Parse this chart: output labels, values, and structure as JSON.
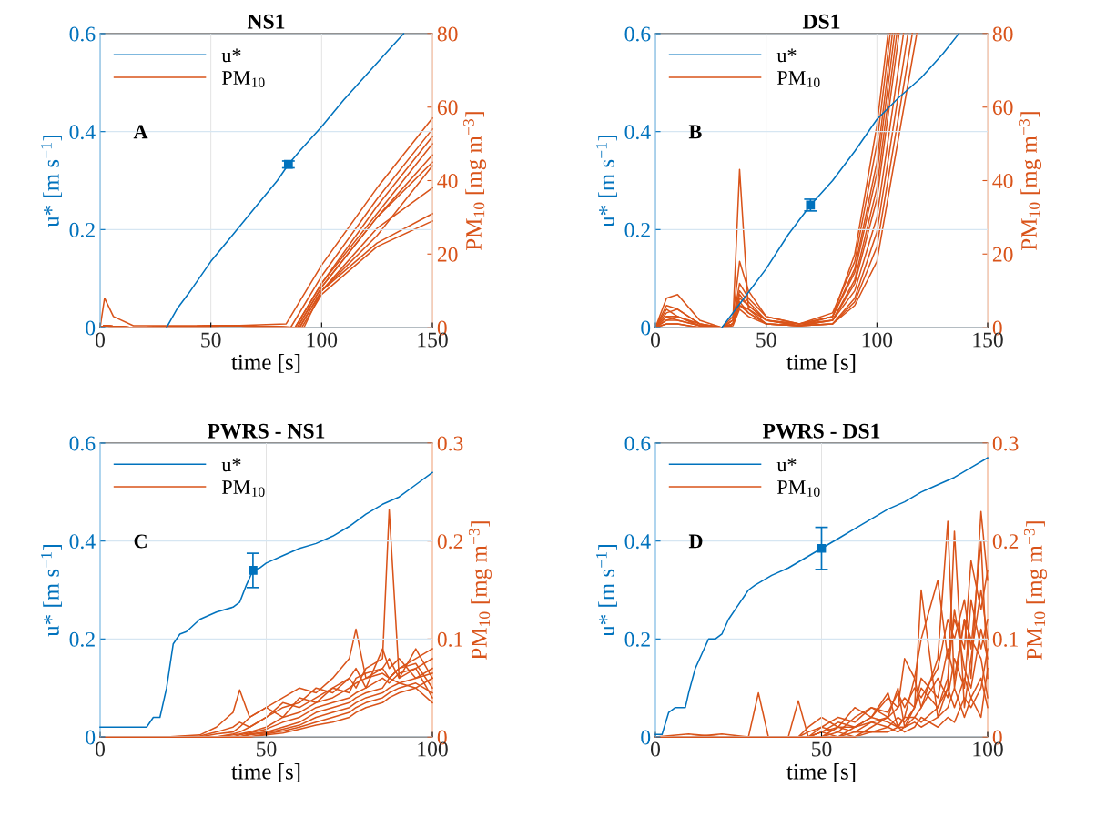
{
  "chart_data": [
    {
      "type": "line",
      "title": "NS1",
      "xlabel": "time [s]",
      "ylabel": "u* [m s$^{−1}$]",
      "y2label": "PM$_{10}$ [mg m$^{−3}$]",
      "annotations": [
        "A"
      ],
      "grid": true,
      "legend": "top left",
      "xlim": [
        0,
        150
      ],
      "xticks": [
        0,
        50,
        100,
        150
      ],
      "ylim": [
        0,
        0.6
      ],
      "yticks": [
        0,
        0.2,
        0.4,
        0.6
      ],
      "y2lim": [
        0,
        80
      ],
      "y2ticks": [
        0,
        20,
        40,
        60,
        80
      ],
      "series": [
        {
          "name": "u*",
          "color": "#0072bd",
          "x": [
            30,
            35,
            40,
            50,
            60,
            70,
            80,
            85,
            90,
            100,
            110,
            120,
            130,
            137
          ],
          "values": [
            0,
            0.04,
            0.07,
            0.135,
            0.19,
            0.245,
            0.3,
            0.333,
            0.36,
            0.41,
            0.465,
            0.515,
            0.565,
            0.6
          ]
        },
        {
          "type": "scatter",
          "marker": "square",
          "color": "#0072bd",
          "x": [
            85
          ],
          "values": [
            0.333
          ],
          "errors": [
            0.007
          ]
        },
        {
          "name": "PM$_{10}$",
          "axis": "y2",
          "color": "#d95319",
          "x": [
            0,
            2,
            6,
            15,
            60,
            84,
            100,
            125,
            150
          ],
          "values": [
            0,
            8,
            3,
            0.5,
            0.5,
            1,
            17,
            38,
            57
          ]
        },
        {
          "axis": "y2",
          "color": "#d95319",
          "x": [
            0,
            2,
            6,
            15,
            60,
            86,
            100,
            125,
            150
          ],
          "values": [
            0,
            0.5,
            0.3,
            0,
            0.5,
            0,
            14,
            35,
            54
          ]
        },
        {
          "axis": "y2",
          "color": "#d95319",
          "x": [
            0,
            2,
            6,
            15,
            60,
            88,
            100,
            125,
            150
          ],
          "values": [
            0,
            0.5,
            0.3,
            0,
            0.5,
            0,
            12,
            33,
            52
          ]
        },
        {
          "axis": "y2",
          "color": "#d95319",
          "x": [
            0,
            2,
            6,
            15,
            60,
            88,
            100,
            125,
            150
          ],
          "values": [
            0,
            0.5,
            0.3,
            0,
            0.5,
            0,
            12,
            31,
            50
          ]
        },
        {
          "axis": "y2",
          "color": "#d95319",
          "x": [
            0,
            2,
            6,
            15,
            60,
            89,
            100,
            125,
            150
          ],
          "values": [
            0,
            0.5,
            0.3,
            0,
            0.5,
            0,
            11,
            30,
            47
          ]
        },
        {
          "axis": "y2",
          "color": "#d95319",
          "x": [
            0,
            2,
            6,
            15,
            60,
            89,
            100,
            125,
            150
          ],
          "values": [
            0,
            0.5,
            0.3,
            0,
            0.5,
            0,
            11,
            30,
            45
          ]
        },
        {
          "axis": "y2",
          "color": "#d95319",
          "x": [
            0,
            2,
            6,
            15,
            60,
            90,
            100,
            125,
            150
          ],
          "values": [
            0,
            0.5,
            0.3,
            0,
            0.5,
            0,
            10,
            27,
            38
          ]
        },
        {
          "axis": "y2",
          "color": "#d95319",
          "x": [
            0,
            2,
            6,
            15,
            60,
            90,
            100,
            125,
            150
          ],
          "values": [
            0,
            0.5,
            0.3,
            0,
            0.5,
            0,
            10,
            23,
            31
          ]
        },
        {
          "axis": "y2",
          "color": "#d95319",
          "x": [
            0,
            2,
            6,
            15,
            60,
            91,
            100,
            125,
            150
          ],
          "values": [
            0,
            0.5,
            0.3,
            0,
            0.5,
            0,
            9,
            22,
            29
          ]
        },
        {
          "axis": "y2",
          "color": "#d95319",
          "x": [
            0,
            2,
            6,
            15,
            60,
            92,
            100,
            125,
            150
          ],
          "values": [
            0,
            0.5,
            0.3,
            0,
            0.5,
            0,
            10,
            25,
            44
          ]
        }
      ]
    },
    {
      "type": "line",
      "title": "DS1",
      "xlabel": "time [s]",
      "ylabel": "u* [m s$^{−1}$]",
      "y2label": "PM$_{10}$ [mg m$^{−3}$]",
      "annotations": [
        "B"
      ],
      "grid": true,
      "legend": "top left",
      "xlim": [
        0,
        150
      ],
      "xticks": [
        0,
        50,
        100,
        150
      ],
      "ylim": [
        0,
        0.6
      ],
      "yticks": [
        0,
        0.2,
        0.4,
        0.6
      ],
      "y2lim": [
        0,
        80
      ],
      "y2ticks": [
        0,
        20,
        40,
        60,
        80
      ],
      "series": [
        {
          "name": "u*",
          "color": "#0072bd",
          "x": [
            30,
            40,
            50,
            60,
            70,
            80,
            90,
            100,
            110,
            120,
            130,
            137
          ],
          "values": [
            0,
            0.06,
            0.12,
            0.19,
            0.25,
            0.3,
            0.36,
            0.425,
            0.47,
            0.51,
            0.56,
            0.6
          ]
        },
        {
          "type": "scatter",
          "marker": "square",
          "color": "#0072bd",
          "x": [
            70
          ],
          "values": [
            0.25
          ],
          "errors": [
            0.012
          ]
        },
        {
          "name": "PM$_{10}$",
          "axis": "y2",
          "color": "#d95319",
          "x": [
            0,
            5,
            10,
            20,
            30,
            35,
            38,
            42,
            50,
            65,
            80,
            90,
            100,
            105
          ],
          "values": [
            0,
            6,
            5,
            1,
            0,
            2,
            43,
            5,
            2,
            0.5,
            3,
            20,
            55,
            80
          ]
        },
        {
          "axis": "y2",
          "color": "#d95319",
          "x": [
            0,
            5,
            10,
            20,
            30,
            35,
            38,
            42,
            50,
            65,
            80,
            90,
            100,
            106
          ],
          "values": [
            0,
            8,
            9,
            2,
            0,
            3,
            18,
            10,
            3,
            1,
            4,
            18,
            50,
            80
          ]
        },
        {
          "axis": "y2",
          "color": "#d95319",
          "x": [
            0,
            5,
            10,
            20,
            30,
            35,
            38,
            42,
            50,
            65,
            80,
            90,
            100,
            107
          ],
          "values": [
            0,
            4,
            5,
            1,
            0,
            2,
            12,
            8,
            3,
            1,
            3,
            16,
            45,
            80
          ]
        },
        {
          "axis": "y2",
          "color": "#d95319",
          "x": [
            0,
            5,
            10,
            20,
            30,
            35,
            38,
            42,
            50,
            65,
            80,
            90,
            100,
            108
          ],
          "values": [
            0,
            3,
            3,
            0.5,
            0,
            2,
            10,
            7,
            2,
            1,
            3,
            15,
            42,
            80
          ]
        },
        {
          "axis": "y2",
          "color": "#d95319",
          "x": [
            0,
            5,
            10,
            20,
            30,
            35,
            38,
            42,
            50,
            65,
            80,
            90,
            100,
            109
          ],
          "values": [
            0,
            2,
            2,
            0.5,
            0,
            1,
            8,
            6,
            2,
            0.5,
            2,
            13,
            38,
            80
          ]
        },
        {
          "axis": "y2",
          "color": "#d95319",
          "x": [
            0,
            5,
            10,
            20,
            30,
            35,
            38,
            42,
            50,
            65,
            80,
            90,
            100,
            110
          ],
          "values": [
            0,
            1,
            1,
            0,
            0,
            1,
            6,
            5,
            1,
            0.5,
            2,
            12,
            35,
            80
          ]
        },
        {
          "axis": "y2",
          "color": "#d95319",
          "x": [
            0,
            5,
            10,
            20,
            30,
            35,
            38,
            42,
            50,
            65,
            80,
            90,
            100,
            112
          ],
          "values": [
            0,
            5,
            3,
            1,
            0,
            1,
            9,
            6,
            2,
            1,
            2,
            10,
            30,
            80
          ]
        },
        {
          "axis": "y2",
          "color": "#d95319",
          "x": [
            0,
            5,
            10,
            20,
            30,
            35,
            38,
            42,
            50,
            65,
            80,
            90,
            100,
            114
          ],
          "values": [
            0,
            2,
            3,
            0.5,
            0,
            1,
            7,
            4,
            1,
            0.5,
            1,
            8,
            26,
            80
          ]
        },
        {
          "axis": "y2",
          "color": "#d95319",
          "x": [
            0,
            5,
            10,
            20,
            30,
            35,
            38,
            42,
            50,
            65,
            80,
            90,
            100,
            116
          ],
          "values": [
            0,
            1,
            1,
            0,
            0,
            0.5,
            5,
            3,
            1,
            0.5,
            1,
            7,
            22,
            80
          ]
        },
        {
          "axis": "y2",
          "color": "#d95319",
          "x": [
            0,
            5,
            10,
            20,
            30,
            35,
            38,
            42,
            50,
            65,
            80,
            90,
            100,
            118
          ],
          "values": [
            0,
            3,
            2,
            0.5,
            0,
            1,
            6,
            4,
            1,
            0.5,
            1,
            6,
            18,
            80
          ]
        }
      ]
    },
    {
      "type": "line",
      "title": "PWRS - NS1",
      "xlabel": "time [s]",
      "ylabel": "u* [m s$^{−1}$]",
      "y2label": "PM$_{10}$ [mg m$^{−3}$]",
      "annotations": [
        "C"
      ],
      "grid": "y",
      "ref_lines": [
        {
          "axis": "x",
          "value": 50,
          "color": "#e2e2e2"
        }
      ],
      "legend": "top left",
      "xlim": [
        0,
        100
      ],
      "xticks": [
        0,
        50,
        100
      ],
      "ylim": [
        0,
        0.6
      ],
      "yticks": [
        0,
        0.2,
        0.4,
        0.6
      ],
      "y2lim": [
        0,
        0.3
      ],
      "y2ticks": [
        0,
        0.1,
        0.2,
        0.3
      ],
      "x": [
        0,
        10,
        20,
        30,
        35,
        40,
        42,
        45,
        50,
        55,
        60,
        65,
        70,
        75,
        77,
        80,
        85,
        87,
        90,
        95,
        100
      ],
      "series": [
        {
          "name": "u*",
          "color": "#0072bd",
          "x": [
            0,
            10,
            14,
            16,
            18,
            20,
            22,
            24,
            26,
            30,
            35,
            40,
            42,
            44,
            46,
            48,
            50,
            55,
            60,
            65,
            70,
            75,
            80,
            85,
            90,
            95,
            100
          ],
          "values": [
            0.02,
            0.02,
            0.02,
            0.04,
            0.04,
            0.1,
            0.19,
            0.21,
            0.215,
            0.24,
            0.255,
            0.265,
            0.275,
            0.31,
            0.34,
            0.345,
            0.355,
            0.37,
            0.385,
            0.395,
            0.41,
            0.43,
            0.455,
            0.475,
            0.49,
            0.515,
            0.54
          ]
        },
        {
          "type": "scatter",
          "marker": "square",
          "color": "#0072bd",
          "x": [
            46
          ],
          "values": [
            0.34
          ],
          "errors": [
            0.035
          ]
        },
        {
          "name": "PM$_{10}$",
          "axis": "y2",
          "color": "#d95319",
          "values": [
            0,
            0,
            0,
            0.002,
            0.01,
            0.025,
            0.048,
            0.02,
            0.03,
            0.04,
            0.05,
            0.045,
            0.06,
            0.08,
            0.11,
            0.06,
            0.07,
            0.06,
            0.07,
            0.08,
            0.09
          ]
        },
        {
          "axis": "y2",
          "color": "#d95319",
          "values": [
            0,
            0,
            0,
            0.001,
            0.005,
            0.01,
            0.015,
            0.01,
            0.02,
            0.03,
            0.035,
            0.05,
            0.045,
            0.06,
            0.05,
            0.07,
            0.08,
            0.232,
            0.06,
            0.07,
            0.08
          ]
        },
        {
          "axis": "y2",
          "color": "#d95319",
          "values": [
            0,
            0,
            0,
            0,
            0.003,
            0.005,
            0.01,
            0.02,
            0.03,
            0.02,
            0.04,
            0.035,
            0.05,
            0.06,
            0.07,
            0.05,
            0.09,
            0.07,
            0.08,
            0.06,
            0.07
          ]
        },
        {
          "axis": "y2",
          "color": "#d95319",
          "values": [
            0,
            0,
            0,
            0,
            0,
            0.003,
            0.005,
            0.01,
            0.02,
            0.035,
            0.03,
            0.04,
            0.05,
            0.045,
            0.06,
            0.065,
            0.07,
            0.08,
            0.06,
            0.09,
            0.06
          ]
        },
        {
          "axis": "y2",
          "color": "#d95319",
          "values": [
            0,
            0,
            0,
            0,
            0,
            0.002,
            0.003,
            0.005,
            0.01,
            0.02,
            0.025,
            0.035,
            0.04,
            0.05,
            0.055,
            0.06,
            0.065,
            0.06,
            0.07,
            0.075,
            0.05
          ]
        },
        {
          "axis": "y2",
          "color": "#d95319",
          "values": [
            0,
            0,
            0,
            0,
            0,
            0,
            0.002,
            0.004,
            0.008,
            0.015,
            0.02,
            0.03,
            0.035,
            0.04,
            0.045,
            0.05,
            0.06,
            0.055,
            0.065,
            0.07,
            0.04
          ]
        },
        {
          "axis": "y2",
          "color": "#d95319",
          "values": [
            0,
            0,
            0,
            0,
            0,
            0,
            0,
            0.003,
            0.005,
            0.01,
            0.015,
            0.025,
            0.03,
            0.035,
            0.04,
            0.045,
            0.05,
            0.06,
            0.055,
            0.06,
            0.065
          ]
        },
        {
          "axis": "y2",
          "color": "#d95319",
          "values": [
            0,
            0,
            0,
            0,
            0,
            0,
            0,
            0.002,
            0.004,
            0.008,
            0.012,
            0.02,
            0.025,
            0.03,
            0.035,
            0.04,
            0.045,
            0.05,
            0.055,
            0.05,
            0.06
          ]
        },
        {
          "axis": "y2",
          "color": "#d95319",
          "values": [
            0,
            0,
            0,
            0,
            0,
            0,
            0,
            0,
            0.003,
            0.006,
            0.01,
            0.015,
            0.02,
            0.025,
            0.03,
            0.035,
            0.04,
            0.045,
            0.05,
            0.055,
            0.045
          ]
        },
        {
          "axis": "y2",
          "color": "#d95319",
          "values": [
            0,
            0,
            0,
            0,
            0,
            0,
            0,
            0,
            0.002,
            0.004,
            0.008,
            0.012,
            0.015,
            0.02,
            0.025,
            0.03,
            0.035,
            0.04,
            0.045,
            0.05,
            0.035
          ]
        }
      ]
    },
    {
      "type": "line",
      "title": "PWRS - DS1",
      "xlabel": "time [s]",
      "ylabel": "u* [m s$^{−1}$]",
      "y2label": "PM$_{10}$ [mg m$^{−3}$]",
      "annotations": [
        "D"
      ],
      "grid": "y",
      "ref_lines": [
        {
          "axis": "x",
          "value": 50,
          "color": "#e2e2e2"
        }
      ],
      "legend": "top left",
      "xlim": [
        0,
        100
      ],
      "xticks": [
        0,
        50,
        100
      ],
      "ylim": [
        0,
        0.6
      ],
      "yticks": [
        0,
        0.2,
        0.4,
        0.6
      ],
      "y2lim": [
        0,
        0.3
      ],
      "y2ticks": [
        0,
        0.1,
        0.2,
        0.3
      ],
      "x": [
        0,
        10,
        20,
        28,
        31,
        34,
        40,
        43,
        46,
        50,
        55,
        60,
        65,
        70,
        73,
        75,
        78,
        80,
        85,
        88,
        90,
        93,
        95,
        98,
        100
      ],
      "series": [
        {
          "name": "u*",
          "color": "#0072bd",
          "x": [
            0,
            2,
            4,
            6,
            9,
            10,
            12,
            14,
            16,
            18,
            20,
            22,
            25,
            28,
            30,
            35,
            40,
            45,
            50,
            55,
            60,
            65,
            70,
            75,
            80,
            85,
            90,
            95,
            100
          ],
          "values": [
            0.005,
            0.005,
            0.05,
            0.06,
            0.06,
            0.09,
            0.14,
            0.17,
            0.2,
            0.2,
            0.21,
            0.24,
            0.27,
            0.3,
            0.31,
            0.33,
            0.345,
            0.365,
            0.385,
            0.405,
            0.425,
            0.445,
            0.465,
            0.48,
            0.5,
            0.515,
            0.53,
            0.55,
            0.57
          ]
        },
        {
          "type": "scatter",
          "marker": "square",
          "color": "#0072bd",
          "x": [
            50
          ],
          "values": [
            0.385
          ],
          "errors": [
            0.043
          ]
        },
        {
          "name": "PM$_{10}$",
          "axis": "y2",
          "color": "#d95319",
          "values": [
            0,
            0,
            0,
            0,
            0.045,
            0,
            0,
            0,
            0,
            0.005,
            0.01,
            0.01,
            0.015,
            0.02,
            0.05,
            0.01,
            0.03,
            0.15,
            0.02,
            0.05,
            0.21,
            0.03,
            0.08,
            0.15,
            0.1
          ]
        },
        {
          "axis": "y2",
          "color": "#d95319",
          "values": [
            0,
            0,
            0.003,
            0,
            0,
            0,
            0,
            0.037,
            0,
            0.005,
            0.015,
            0.01,
            0.02,
            0.045,
            0.01,
            0.02,
            0.06,
            0.03,
            0.08,
            0.22,
            0.05,
            0.12,
            0.06,
            0.23,
            0.16
          ]
        },
        {
          "axis": "y2",
          "color": "#d95319",
          "values": [
            0,
            0,
            0,
            0,
            0,
            0,
            0,
            0,
            0.01,
            0.02,
            0.01,
            0.03,
            0.02,
            0.04,
            0.03,
            0.08,
            0.06,
            0.1,
            0.16,
            0.08,
            0.12,
            0.09,
            0.18,
            0.13,
            0.17
          ]
        },
        {
          "axis": "y2",
          "color": "#d95319",
          "values": [
            0,
            0,
            0,
            0,
            0,
            0,
            0,
            0,
            0,
            0.01,
            0.02,
            0.015,
            0.03,
            0.025,
            0.045,
            0.03,
            0.05,
            0.04,
            0.07,
            0.12,
            0.1,
            0.14,
            0.09,
            0.2,
            0.06
          ]
        },
        {
          "axis": "y2",
          "color": "#d95319",
          "values": [
            0,
            0,
            0,
            0,
            0,
            0,
            0,
            0,
            0.005,
            0.01,
            0.005,
            0.02,
            0.03,
            0.02,
            0.03,
            0.04,
            0.03,
            0.06,
            0.04,
            0.09,
            0.06,
            0.12,
            0.1,
            0.08,
            0.04
          ]
        },
        {
          "axis": "y2",
          "color": "#d95319",
          "values": [
            0,
            0,
            0,
            0,
            0,
            0,
            0,
            0,
            0,
            0,
            0.01,
            0.005,
            0.015,
            0.01,
            0.02,
            0.015,
            0.03,
            0.05,
            0.03,
            0.06,
            0.13,
            0.07,
            0.05,
            0.11,
            0.08
          ]
        },
        {
          "axis": "y2",
          "color": "#d95319",
          "values": [
            0,
            0,
            0,
            0,
            0,
            0,
            0,
            0,
            0,
            0.005,
            0,
            0.01,
            0.02,
            0.015,
            0.01,
            0.02,
            0.02,
            0.03,
            0.06,
            0.04,
            0.08,
            0.05,
            0.14,
            0.09,
            0.12
          ]
        },
        {
          "axis": "y2",
          "color": "#d95319",
          "values": [
            0,
            0.003,
            0,
            0,
            0,
            0,
            0,
            0,
            0,
            0,
            0.005,
            0,
            0.01,
            0.02,
            0.01,
            0.01,
            0.02,
            0.015,
            0.03,
            0.05,
            0.03,
            0.06,
            0.04,
            0.02,
            0.07
          ]
        },
        {
          "axis": "y2",
          "color": "#d95319",
          "values": [
            0,
            0,
            0,
            0,
            0,
            0,
            0,
            0,
            0,
            0,
            0,
            0.005,
            0.005,
            0.01,
            0.005,
            0.01,
            0.015,
            0.01,
            0.02,
            0.03,
            0.05,
            0.02,
            0.04,
            0.06,
            0.03
          ]
        },
        {
          "axis": "y2",
          "color": "#d95319",
          "values": [
            0,
            0,
            0,
            0,
            0,
            0,
            0,
            0,
            0,
            0,
            0,
            0,
            0.005,
            0.005,
            0.01,
            0.005,
            0.01,
            0.02,
            0.01,
            0.02,
            0.015,
            0.04,
            0.03,
            0.05,
            0.09
          ]
        }
      ]
    }
  ]
}
